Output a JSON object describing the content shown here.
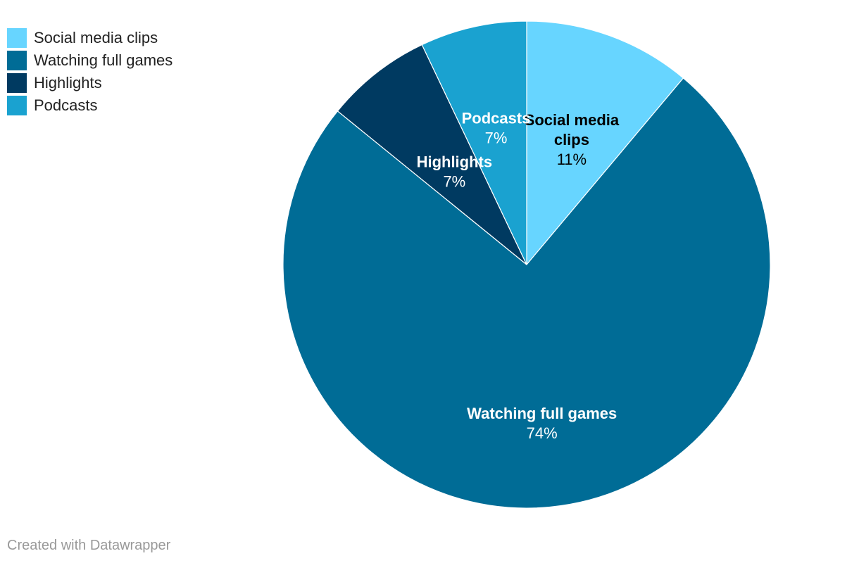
{
  "chart_data": {
    "type": "pie",
    "categories": [
      "Social media clips",
      "Watching full games",
      "Highlights",
      "Podcasts"
    ],
    "values": [
      11,
      74,
      7,
      7
    ],
    "value_labels": [
      "11%",
      "74%",
      "7%",
      "7%"
    ],
    "label_lines": [
      [
        "Social media",
        "clips"
      ],
      [
        "Watching full games"
      ],
      [
        "Highlights"
      ],
      [
        "Podcasts"
      ]
    ],
    "colors": [
      "#67d5ff",
      "#006c96",
      "#003a61",
      "#1aa2d0"
    ],
    "label_colors": [
      "#000000",
      "#ffffff",
      "#ffffff",
      "#ffffff"
    ],
    "legend_placement": "top-left"
  },
  "footer": {
    "credit": "Created with Datawrapper"
  }
}
